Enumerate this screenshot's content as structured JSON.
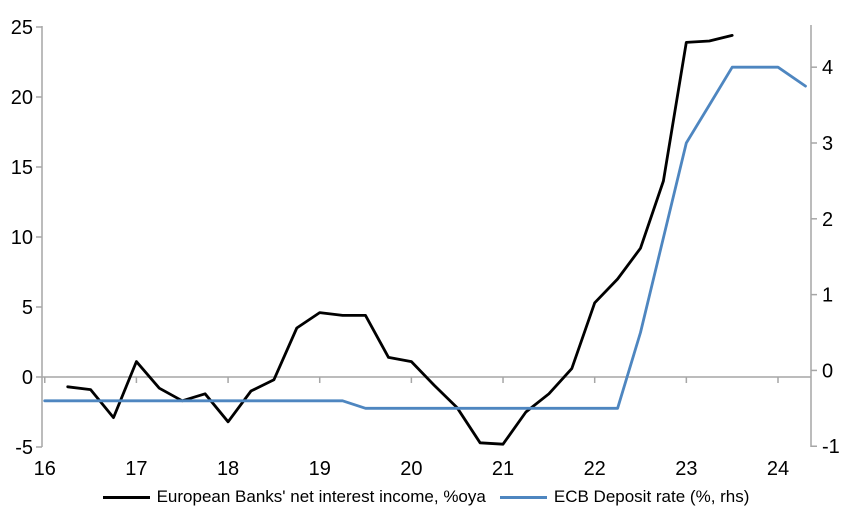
{
  "colors": {
    "background": "#ffffff",
    "axis": "#a6a6a6",
    "zero_gridline": "#a6a6a6",
    "text": "#000000",
    "series_nii": "#000000",
    "series_ecb": "#4e86c0"
  },
  "chart_data": {
    "type": "line",
    "title": "",
    "xlabel": "",
    "ylabel_left": "",
    "ylabel_right": "",
    "grid": "zero-line-only",
    "legend_position": "bottom",
    "x_axis": {
      "tick_values": [
        16,
        17,
        18,
        19,
        20,
        21,
        22,
        23,
        24
      ],
      "tick_labels": [
        "16",
        "17",
        "18",
        "19",
        "20",
        "21",
        "22",
        "23",
        "24"
      ],
      "range": [
        15.97,
        24.36
      ]
    },
    "y_axis_left": {
      "tick_values": [
        -5,
        0,
        5,
        10,
        15,
        20,
        25
      ],
      "tick_labels": [
        "-5",
        "0",
        "5",
        "10",
        "15",
        "20",
        "25"
      ],
      "range": [
        -5,
        25
      ]
    },
    "y_axis_right": {
      "tick_values": [
        -1,
        0,
        1,
        2,
        3,
        4
      ],
      "tick_labels": [
        "-1",
        "0",
        "1",
        "2",
        "3",
        "4"
      ],
      "range": [
        -1.01,
        4.53
      ]
    },
    "series": [
      {
        "name": "European Banks' net interest income, %oya",
        "axis": "left",
        "color": "#000000",
        "stroke_width": 2.8,
        "x": [
          16.25,
          16.5,
          16.75,
          17.0,
          17.25,
          17.5,
          17.75,
          18.0,
          18.25,
          18.5,
          18.75,
          19.0,
          19.25,
          19.5,
          19.75,
          20.0,
          20.25,
          20.5,
          20.75,
          21.0,
          21.25,
          21.5,
          21.75,
          22.0,
          22.25,
          22.5,
          22.75,
          23.0,
          23.25,
          23.5
        ],
        "values": [
          -0.7,
          -0.9,
          -2.9,
          1.1,
          -0.8,
          -1.7,
          -1.2,
          -3.2,
          -1.0,
          -0.2,
          3.5,
          4.6,
          4.4,
          4.4,
          1.4,
          1.1,
          -0.6,
          -2.2,
          -4.7,
          -4.8,
          -2.5,
          -1.2,
          0.6,
          5.3,
          7.0,
          9.2,
          14.0,
          23.9,
          24.0,
          24.4
        ]
      },
      {
        "name": "ECB Deposit rate (%, rhs)",
        "axis": "right",
        "color": "#4e86c0",
        "stroke_width": 2.8,
        "x": [
          16.0,
          16.25,
          16.5,
          16.75,
          17.0,
          17.25,
          17.5,
          17.75,
          18.0,
          18.25,
          18.5,
          18.75,
          19.0,
          19.25,
          19.5,
          19.75,
          20.0,
          20.25,
          20.5,
          20.75,
          21.0,
          21.25,
          21.5,
          21.75,
          22.0,
          22.25,
          22.5,
          22.75,
          23.0,
          23.25,
          23.5,
          23.75,
          24.0,
          24.3
        ],
        "values": [
          -0.4,
          -0.4,
          -0.4,
          -0.4,
          -0.4,
          -0.4,
          -0.4,
          -0.4,
          -0.4,
          -0.4,
          -0.4,
          -0.4,
          -0.4,
          -0.4,
          -0.5,
          -0.5,
          -0.5,
          -0.5,
          -0.5,
          -0.5,
          -0.5,
          -0.5,
          -0.5,
          -0.5,
          -0.5,
          -0.5,
          0.5,
          1.75,
          3.0,
          3.5,
          4.0,
          4.0,
          4.0,
          3.75
        ]
      }
    ]
  }
}
